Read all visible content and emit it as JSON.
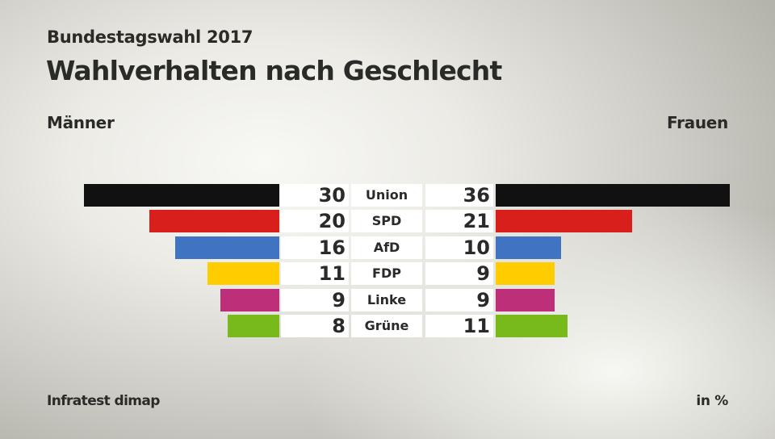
{
  "header": {
    "subtitle": "Bundestagswahl 2017",
    "title": "Wahlverhalten nach Geschlecht"
  },
  "footer": {
    "source": "Infratest dimap",
    "unit": "in %"
  },
  "chart_data": {
    "type": "bar",
    "orientation": "horizontal-butterfly",
    "title": "Wahlverhalten nach Geschlecht",
    "subtitle": "Bundestagswahl 2017",
    "unit": "in %",
    "left_label": "Männer",
    "right_label": "Frauen",
    "categories": [
      "Union",
      "SPD",
      "AfD",
      "FDP",
      "Linke",
      "Grüne"
    ],
    "colors": [
      "#111111",
      "#d91f1c",
      "#4073c2",
      "#ffcc00",
      "#bd2f78",
      "#78b91c"
    ],
    "series": [
      {
        "name": "Männer",
        "values": [
          30,
          20,
          16,
          11,
          9,
          8
        ]
      },
      {
        "name": "Frauen",
        "values": [
          36,
          21,
          10,
          9,
          9,
          11
        ]
      }
    ]
  }
}
